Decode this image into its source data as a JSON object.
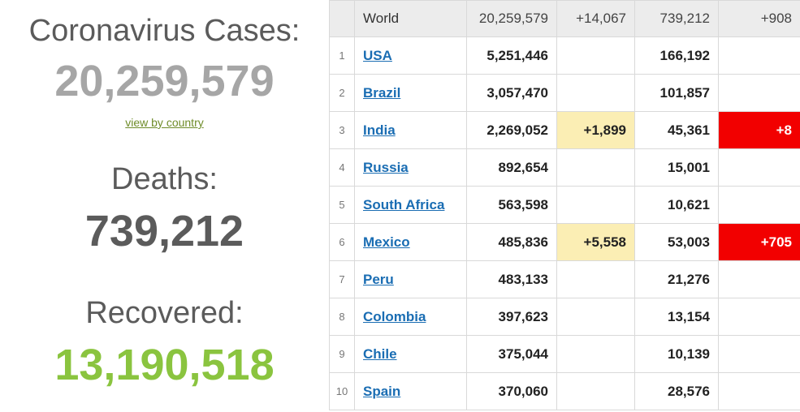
{
  "summary": {
    "cases_label": "Coronavirus Cases:",
    "cases_value": "20,259,579",
    "view_link": "view by country",
    "deaths_label": "Deaths:",
    "deaths_value": "739,212",
    "recovered_label": "Recovered:",
    "recovered_value": "13,190,518"
  },
  "colors": {
    "cases_value": "#a6a6a6",
    "deaths_value": "#5b5b5b",
    "recovered_value": "#8ac43f",
    "link": "#1a6db3",
    "new_cases_highlight": "#fbeeb4",
    "new_deaths_highlight": "#f20000"
  },
  "world": {
    "name": "World",
    "total_cases": "20,259,579",
    "new_cases": "+14,067",
    "total_deaths": "739,212",
    "new_deaths": "+908"
  },
  "rows": [
    {
      "rank": "1",
      "country": "USA",
      "total_cases": "5,251,446",
      "new_cases": "",
      "total_deaths": "166,192",
      "new_deaths": ""
    },
    {
      "rank": "2",
      "country": "Brazil",
      "total_cases": "3,057,470",
      "new_cases": "",
      "total_deaths": "101,857",
      "new_deaths": ""
    },
    {
      "rank": "3",
      "country": "India",
      "total_cases": "2,269,052",
      "new_cases": "+1,899",
      "total_deaths": "45,361",
      "new_deaths": "+8"
    },
    {
      "rank": "4",
      "country": "Russia",
      "total_cases": "892,654",
      "new_cases": "",
      "total_deaths": "15,001",
      "new_deaths": ""
    },
    {
      "rank": "5",
      "country": "South Africa",
      "total_cases": "563,598",
      "new_cases": "",
      "total_deaths": "10,621",
      "new_deaths": ""
    },
    {
      "rank": "6",
      "country": "Mexico",
      "total_cases": "485,836",
      "new_cases": "+5,558",
      "total_deaths": "53,003",
      "new_deaths": "+705"
    },
    {
      "rank": "7",
      "country": "Peru",
      "total_cases": "483,133",
      "new_cases": "",
      "total_deaths": "21,276",
      "new_deaths": ""
    },
    {
      "rank": "8",
      "country": "Colombia",
      "total_cases": "397,623",
      "new_cases": "",
      "total_deaths": "13,154",
      "new_deaths": ""
    },
    {
      "rank": "9",
      "country": "Chile",
      "total_cases": "375,044",
      "new_cases": "",
      "total_deaths": "10,139",
      "new_deaths": ""
    },
    {
      "rank": "10",
      "country": "Spain",
      "total_cases": "370,060",
      "new_cases": "",
      "total_deaths": "28,576",
      "new_deaths": ""
    }
  ]
}
